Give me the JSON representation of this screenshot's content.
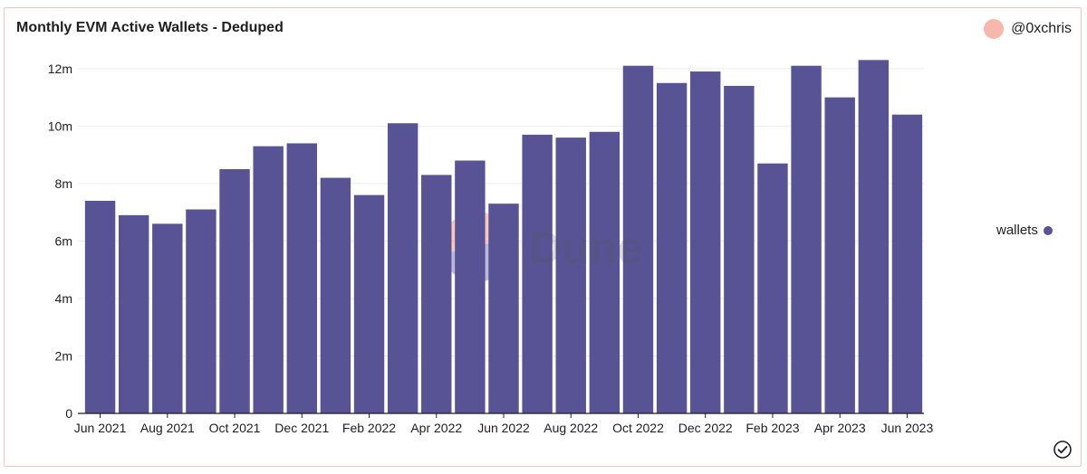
{
  "header": {
    "title": "Monthly EVM Active Wallets - Deduped",
    "author": "@0xchris"
  },
  "watermark": {
    "text": "Dune"
  },
  "legend": {
    "label": "wallets"
  },
  "colors": {
    "bar": "#575394",
    "avatar": "#f5b8ab",
    "border": "#f0c6bc"
  },
  "chart_data": {
    "type": "bar",
    "title": "Monthly EVM Active Wallets - Deduped",
    "xlabel": "",
    "ylabel": "",
    "ylim": [
      0,
      12500000
    ],
    "yticks": [
      0,
      2000000,
      4000000,
      6000000,
      8000000,
      10000000,
      12000000
    ],
    "ytick_labels": [
      "0",
      "2m",
      "4m",
      "6m",
      "8m",
      "10m",
      "12m"
    ],
    "categories": [
      "Jun 2021",
      "Jul 2021",
      "Aug 2021",
      "Sep 2021",
      "Oct 2021",
      "Nov 2021",
      "Dec 2021",
      "Jan 2022",
      "Feb 2022",
      "Mar 2022",
      "Apr 2022",
      "May 2022",
      "Jun 2022",
      "Jul 2022",
      "Aug 2022",
      "Sep 2022",
      "Oct 2022",
      "Nov 2022",
      "Dec 2022",
      "Jan 2023",
      "Feb 2023",
      "Mar 2023",
      "Apr 2023",
      "May 2023",
      "Jun 2023"
    ],
    "xtick_labels": [
      "Jun 2021",
      "Aug 2021",
      "Oct 2021",
      "Dec 2021",
      "Feb 2022",
      "Apr 2022",
      "Jun 2022",
      "Aug 2022",
      "Oct 2022",
      "Dec 2022",
      "Feb 2023",
      "Apr 2023",
      "Jun 2023"
    ],
    "xtick_indices": [
      0,
      2,
      4,
      6,
      8,
      10,
      12,
      14,
      16,
      18,
      20,
      22,
      24
    ],
    "series": [
      {
        "name": "wallets",
        "values": [
          7400000,
          6900000,
          6600000,
          7100000,
          8500000,
          9300000,
          9400000,
          8200000,
          7600000,
          10100000,
          8300000,
          8800000,
          7300000,
          9700000,
          9600000,
          9800000,
          12100000,
          11500000,
          11900000,
          11400000,
          8700000,
          12100000,
          11000000,
          12300000,
          10400000
        ]
      }
    ],
    "grid": true,
    "legend_position": "right"
  }
}
